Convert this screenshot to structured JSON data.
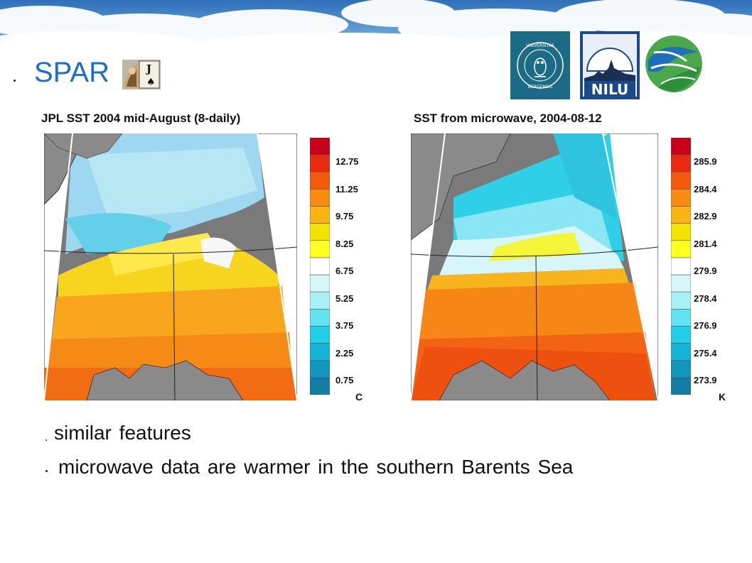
{
  "slide": {
    "title": "SPAR"
  },
  "logos": [
    {
      "name": "Universitas Bergensis",
      "text": "UNIVERSITAS BERGENSIS"
    },
    {
      "name": "NILU",
      "text": "NILU"
    },
    {
      "name": "globe-logo",
      "text": ""
    }
  ],
  "left_plot": {
    "title": "JPL SST 2004 mid-August (8-daily)",
    "unit": "C",
    "colorbar_ticks": [
      "12.75",
      "11.25",
      "9.75",
      "8.25",
      "6.75",
      "5.25",
      "3.75",
      "2.25",
      "0.75"
    ]
  },
  "right_plot": {
    "title": "SST from microwave, 2004-08-12",
    "unit": "K",
    "colorbar_ticks": [
      "285.9",
      "284.4",
      "282.9",
      "281.4",
      "279.9",
      "278.4",
      "276.9",
      "275.4",
      "273.9"
    ]
  },
  "colorbar_colors": [
    "#c8001a",
    "#e82a10",
    "#f45a0c",
    "#f98a10",
    "#fbb410",
    "#f4e200",
    "#ffff20",
    "#ffffff",
    "#d6f7fa",
    "#a6f0f6",
    "#5fe4f0",
    "#22cfe6",
    "#14b4d8",
    "#1196be",
    "#137ea4"
  ],
  "bullets": [
    "similar features",
    "microwave data are warmer in the southern Barents Sea"
  ]
}
